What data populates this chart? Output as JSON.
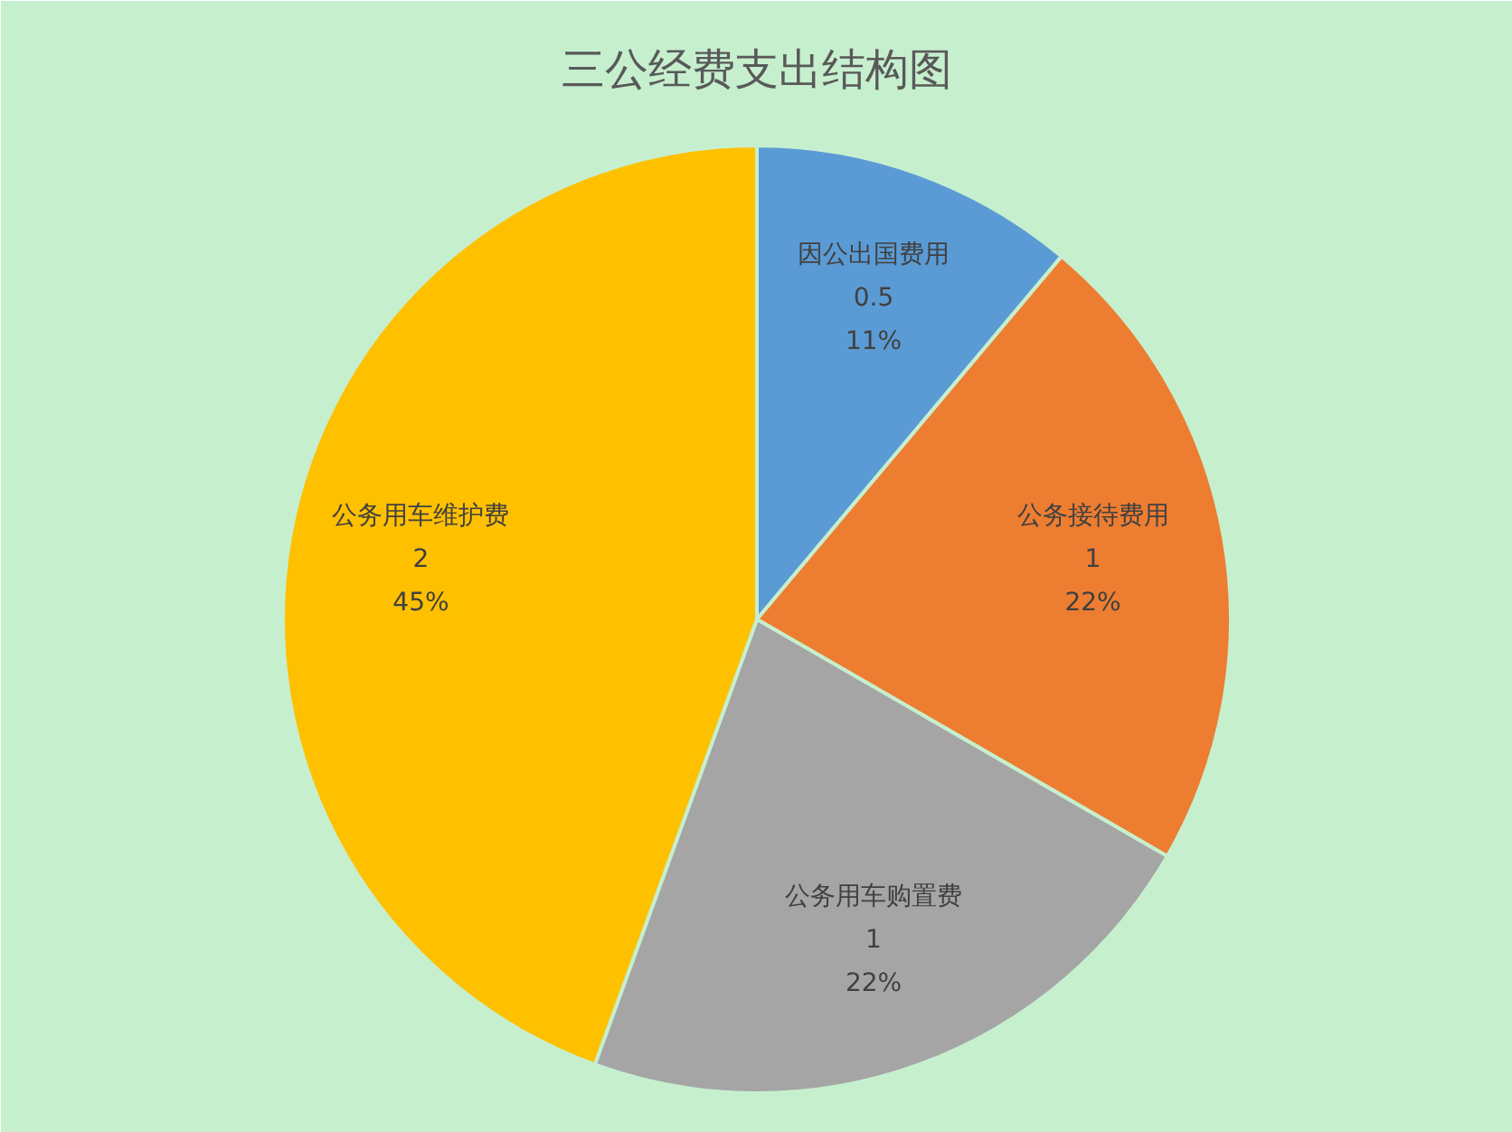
{
  "chart_data": {
    "type": "pie",
    "title": "三公经费支出结构图",
    "categories": [
      "因公出国费用",
      "公务接待费用",
      "公务用车购置费",
      "公务用车维护费"
    ],
    "values": [
      0.5,
      1,
      1,
      2
    ],
    "value_labels": [
      "0.5\n11%",
      "1\n22%",
      "1\n22%",
      "2\n45%"
    ],
    "colors": [
      "#5b9bd5",
      "#ed7d31",
      "#a5a5a5",
      "#ffc000"
    ],
    "legend": false
  }
}
